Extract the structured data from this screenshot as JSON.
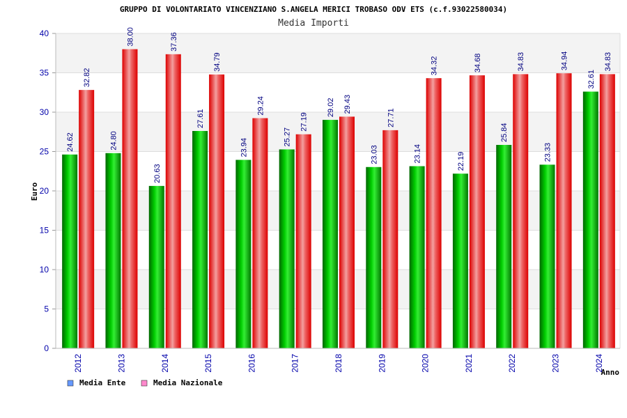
{
  "chart_data": {
    "type": "bar",
    "title": "GRUPPO DI VOLONTARIATO VINCENZIANO S.ANGELA MERICI TROBASO ODV ETS (c.f.93022580034)",
    "subtitle": "Media Importi",
    "xlabel": "Anno",
    "ylabel": "Euro",
    "ylim": [
      0,
      40
    ],
    "yticks": [
      0,
      5,
      10,
      15,
      20,
      25,
      30,
      35,
      40
    ],
    "grid": "horizontal",
    "legend": "bottom-left",
    "categories": [
      "2012",
      "2013",
      "2014",
      "2015",
      "2016",
      "2017",
      "2018",
      "2019",
      "2020",
      "2021",
      "2022",
      "2023",
      "2024"
    ],
    "series": [
      {
        "name": "Media Ente",
        "color": "#00aa00",
        "legend_color": "#6699ff",
        "values": [
          24.62,
          24.8,
          20.63,
          27.61,
          23.94,
          25.27,
          29.02,
          23.03,
          23.14,
          22.19,
          25.84,
          23.33,
          32.61
        ],
        "labels": [
          "24.62",
          "24.80",
          "20.63",
          "27.61",
          "23.94",
          "25.27",
          "29.02",
          "23.03",
          "23.14",
          "22.19",
          "25.84",
          "23.33",
          "32.61"
        ]
      },
      {
        "name": "Media Nazionale",
        "color": "#ee0000",
        "legend_color": "#ff88cc",
        "values": [
          32.82,
          38.0,
          37.36,
          34.79,
          29.24,
          27.19,
          29.43,
          27.71,
          34.32,
          34.68,
          34.83,
          34.94,
          34.83
        ],
        "labels": [
          "32.82",
          "38.00",
          "37.36",
          "34.79",
          "29.24",
          "27.19",
          "29.43",
          "27.71",
          "34.32",
          "34.68",
          "34.83",
          "34.94",
          "34.83"
        ]
      }
    ]
  }
}
